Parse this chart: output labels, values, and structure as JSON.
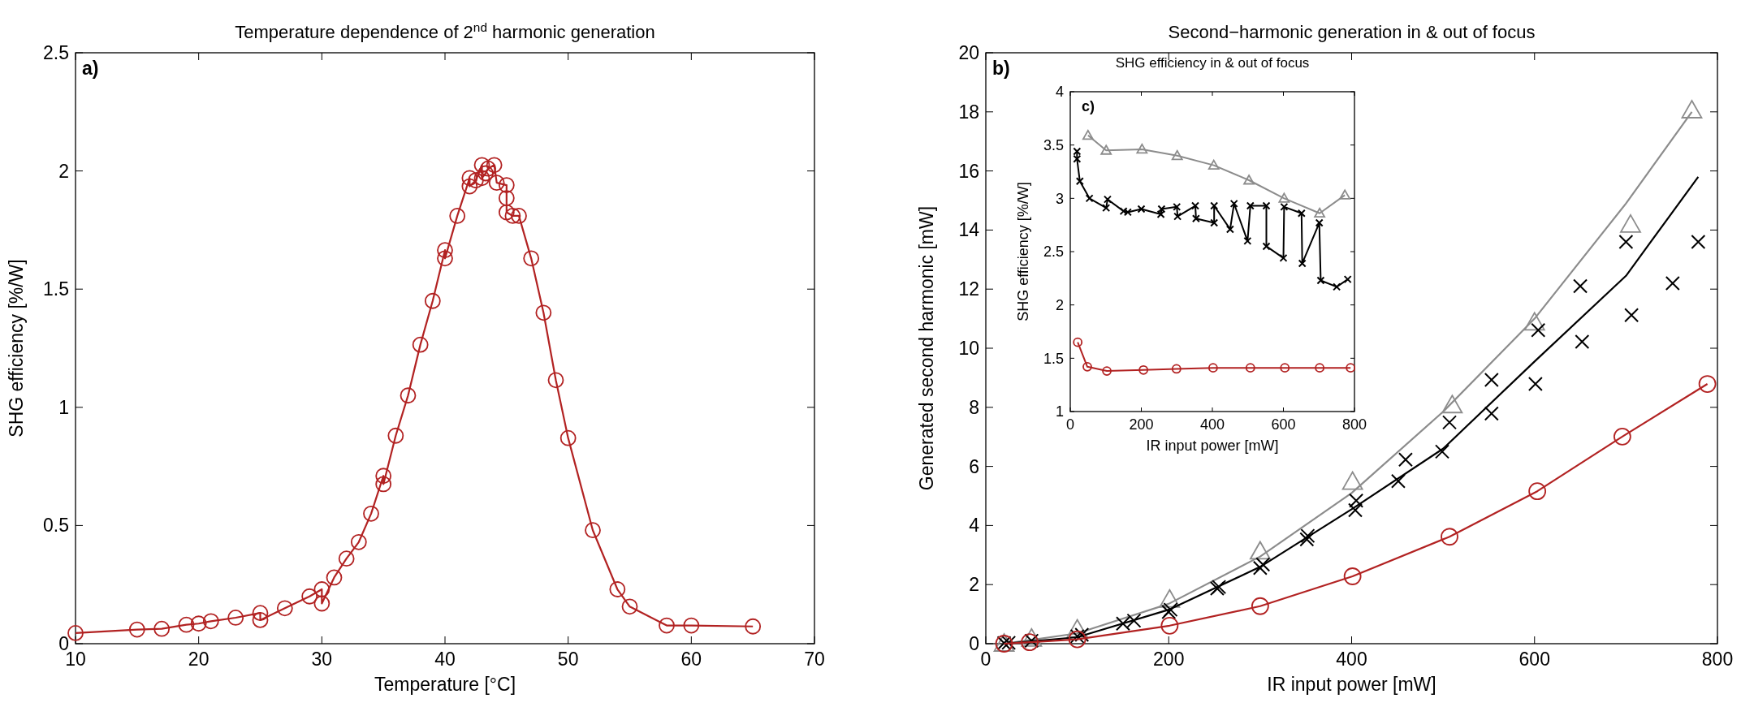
{
  "chart_data": [
    {
      "type": "line",
      "title": "Temperature dependence of 2$^{nd}$ harmonic generation",
      "xlabel": "Temperature [°C]",
      "ylabel": "SHG efficiency [%/W]",
      "annotations": [
        "a)"
      ],
      "xlim": [
        10,
        70
      ],
      "ylim": [
        0,
        2.5
      ],
      "xticks": [
        10,
        20,
        30,
        40,
        50,
        60,
        70
      ],
      "yticks": [
        0,
        0.5,
        1,
        1.5,
        2,
        2.5
      ],
      "series": [
        {
          "type": "line",
          "marker": "circle",
          "color": "#b22222",
          "x": [
            10,
            15,
            17,
            19,
            20,
            21,
            23,
            25,
            25,
            27,
            29,
            30,
            30,
            31,
            32,
            33,
            34,
            35,
            35,
            36,
            37,
            38,
            39,
            40,
            40,
            41,
            42,
            42,
            42.5,
            43,
            43,
            43.3,
            43.5,
            44,
            44.2,
            45,
            45,
            45,
            45.5,
            46,
            47,
            48,
            49,
            50,
            52,
            54,
            55,
            58,
            60,
            65
          ],
          "values": [
            0.045,
            0.06,
            0.063,
            0.08,
            0.085,
            0.095,
            0.11,
            0.13,
            0.1,
            0.15,
            0.2,
            0.23,
            0.17,
            0.28,
            0.36,
            0.43,
            0.55,
            0.71,
            0.675,
            0.88,
            1.05,
            1.265,
            1.45,
            1.665,
            1.63,
            1.81,
            1.97,
            1.935,
            1.96,
            2.025,
            1.97,
            1.99,
            2.01,
            2.025,
            1.95,
            1.94,
            1.885,
            1.825,
            1.81,
            1.81,
            1.63,
            1.4,
            1.115,
            0.87,
            0.48,
            0.23,
            0.157,
            0.077,
            0.077,
            0.073
          ]
        }
      ]
    },
    {
      "type": "line",
      "title": "Second−harmonic generation in & out of focus",
      "xlabel": "IR input power [mW]",
      "ylabel": "Generated second harmonic [mW]",
      "annotations": [
        "b)"
      ],
      "xlim": [
        0,
        800
      ],
      "ylim": [
        0,
        20
      ],
      "xticks": [
        0,
        200,
        400,
        600,
        800
      ],
      "yticks": [
        0,
        2,
        4,
        6,
        8,
        10,
        12,
        14,
        16,
        18,
        20
      ],
      "series": [
        {
          "type": "line",
          "marker": "none",
          "color": "#8c8c8c",
          "x": [
            20,
            100,
            200,
            300,
            400,
            500,
            600,
            700,
            772
          ],
          "values": [
            0,
            0.35,
            1.35,
            2.95,
            5.1,
            7.85,
            11.0,
            14.9,
            18.0
          ]
        },
        {
          "type": "scatter",
          "marker": "triangle",
          "color": "#8c8c8c",
          "x": [
            20,
            50,
            100,
            201,
            300,
            401,
            510,
            600,
            705,
            772
          ],
          "values": [
            0,
            0.17,
            0.48,
            1.49,
            3.12,
            5.48,
            8.07,
            10.87,
            14.18,
            18.05
          ]
        },
        {
          "type": "line",
          "marker": "none",
          "color": "#000000",
          "x": [
            20,
            100,
            200,
            300,
            400,
            500,
            600,
            700,
            779
          ],
          "values": [
            0,
            0.22,
            1.15,
            2.6,
            4.55,
            6.6,
            9.55,
            12.45,
            15.8
          ]
        },
        {
          "type": "scatter",
          "marker": "cross",
          "color": "#000000",
          "x": [
            20,
            25,
            50,
            100,
            105,
            150,
            162,
            200,
            202,
            253,
            255,
            300,
            303,
            351,
            352,
            404,
            405,
            451,
            459,
            499,
            507,
            553,
            553,
            601,
            604,
            650,
            652,
            700,
            706,
            751,
            779
          ],
          "values": [
            0.02,
            0.03,
            0.1,
            0.25,
            0.3,
            0.68,
            0.78,
            1.07,
            1.15,
            1.87,
            1.92,
            2.56,
            2.68,
            3.53,
            3.65,
            4.52,
            4.84,
            5.5,
            6.23,
            6.5,
            7.49,
            7.79,
            8.93,
            8.79,
            10.61,
            12.1,
            10.22,
            13.6,
            11.12,
            12.2,
            13.6
          ]
        },
        {
          "type": "line",
          "marker": "circle",
          "color": "#b22222",
          "x": [
            20,
            48,
            100,
            201,
            300,
            401,
            507,
            603,
            696,
            789
          ],
          "values": [
            0,
            0.05,
            0.15,
            0.61,
            1.27,
            2.28,
            3.62,
            5.16,
            7.01,
            8.79
          ]
        }
      ]
    },
    {
      "type": "line",
      "title": "SHG efficiency in & out of focus",
      "xlabel": "IR input power [mW]",
      "ylabel": "SHG efficiency [%/W]",
      "annotations": [
        "c)"
      ],
      "xlim": [
        0,
        800
      ],
      "ylim": [
        1,
        4
      ],
      "xticks": [
        0,
        200,
        400,
        600,
        800
      ],
      "yticks": [
        1,
        1.5,
        2,
        2.5,
        3,
        3.5,
        4
      ],
      "series": [
        {
          "type": "line",
          "marker": "triangle",
          "color": "#8c8c8c",
          "x": [
            50,
            101,
            202,
            301,
            404,
            503,
            602,
            702,
            773
          ],
          "values": [
            3.59,
            3.45,
            3.46,
            3.4,
            3.31,
            3.17,
            3.0,
            2.86,
            3.03
          ]
        },
        {
          "type": "line",
          "marker": "cross",
          "color": "#000000",
          "x": [
            19,
            19,
            27,
            54,
            101,
            105,
            150,
            162,
            200,
            255,
            257,
            300,
            302,
            352,
            354,
            405,
            405,
            450,
            461,
            499,
            507,
            552,
            552,
            600,
            602,
            651,
            653,
            701,
            705,
            750,
            781
          ],
          "values": [
            3.44,
            3.37,
            3.16,
            3.0,
            2.91,
            2.99,
            2.88,
            2.87,
            2.9,
            2.85,
            2.9,
            2.92,
            2.83,
            2.93,
            2.81,
            2.77,
            2.93,
            2.71,
            2.95,
            2.6,
            2.93,
            2.93,
            2.55,
            2.44,
            2.92,
            2.86,
            2.39,
            2.77,
            2.23,
            2.17,
            2.24
          ]
        },
        {
          "type": "line",
          "marker": "circle",
          "color": "#b22222",
          "x": [
            21,
            48,
            103,
            206,
            299,
            402,
            507,
            604,
            702,
            789
          ],
          "values": [
            1.65,
            1.42,
            1.38,
            1.39,
            1.4,
            1.41,
            1.41,
            1.41,
            1.41,
            1.41
          ]
        }
      ]
    }
  ]
}
